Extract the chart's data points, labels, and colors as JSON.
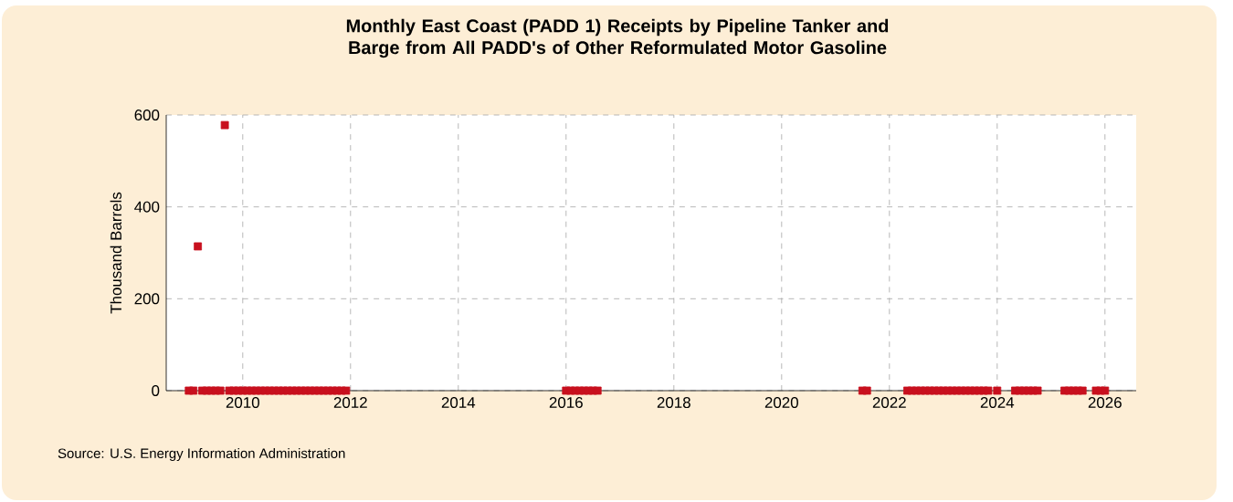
{
  "chart_data": {
    "type": "scatter",
    "title": "Monthly East Coast (PADD 1) Receipts by Pipeline Tanker and Barge from All PADD's of Other Reformulated Motor Gasoline",
    "ylabel": "Thousand Barrels",
    "annotations": [
      "Source: U.S. Energy Information Administration"
    ],
    "x": [
      "2009-01",
      "2009-02",
      "2009-03",
      "2009-04",
      "2009-05",
      "2009-06",
      "2009-07",
      "2009-08",
      "2009-09",
      "2009-10",
      "2009-11",
      "2009-12",
      "2010-01",
      "2010-02",
      "2010-03",
      "2010-04",
      "2010-05",
      "2010-06",
      "2010-07",
      "2010-08",
      "2010-09",
      "2010-10",
      "2010-11",
      "2010-12",
      "2011-01",
      "2011-02",
      "2011-03",
      "2011-04",
      "2011-05",
      "2011-06",
      "2011-07",
      "2011-08",
      "2011-09",
      "2011-10",
      "2011-11",
      "2011-12",
      "2016-01",
      "2016-02",
      "2016-03",
      "2016-04",
      "2016-05",
      "2016-06",
      "2016-07",
      "2016-08",
      "2021-07",
      "2021-08",
      "2022-05",
      "2022-06",
      "2022-07",
      "2022-08",
      "2022-09",
      "2022-10",
      "2022-11",
      "2022-12",
      "2023-01",
      "2023-02",
      "2023-03",
      "2023-04",
      "2023-05",
      "2023-06",
      "2023-07",
      "2023-08",
      "2023-09",
      "2023-10",
      "2023-11",
      "2024-01",
      "2024-05",
      "2024-06",
      "2024-07",
      "2024-08",
      "2024-09",
      "2024-10",
      "2025-04",
      "2025-05",
      "2025-06",
      "2025-07",
      "2025-08",
      "2025-11",
      "2025-12",
      "2026-01"
    ],
    "values": [
      0,
      0,
      314,
      0,
      0,
      0,
      0,
      0,
      578,
      0,
      0,
      0,
      0,
      0,
      0,
      0,
      0,
      0,
      0,
      0,
      0,
      0,
      0,
      0,
      0,
      0,
      0,
      0,
      0,
      0,
      0,
      0,
      0,
      0,
      0,
      0,
      0,
      0,
      0,
      0,
      0,
      0,
      0,
      0,
      0,
      0,
      0,
      0,
      0,
      0,
      0,
      0,
      0,
      0,
      0,
      0,
      0,
      0,
      0,
      0,
      0,
      0,
      0,
      0,
      0,
      0,
      0,
      0,
      0,
      0,
      0,
      0,
      0,
      0,
      0,
      0,
      0,
      0,
      0,
      0
    ],
    "color": "#c8101e",
    "marker": "square",
    "xlim": [
      "2008-08",
      "2026-08"
    ],
    "xticks": [
      "2010",
      "2012",
      "2014",
      "2016",
      "2018",
      "2020",
      "2022",
      "2024",
      "2026"
    ],
    "ylim": [
      0,
      600
    ],
    "yticks": [
      0,
      200,
      400,
      600
    ],
    "grid": true
  }
}
